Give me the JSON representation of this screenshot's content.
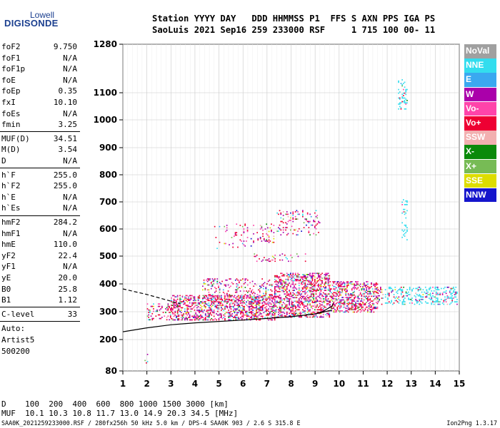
{
  "logo": {
    "line1": "Lowell",
    "line2": "DIGISONDE"
  },
  "header": {
    "line1": "Station YYYY DAY   DDD HHMMSS P1  FFS S AXN PPS IGA PS",
    "line2": "SaoLuis 2021 Sep16 259 233000 RSF     1 715 100 00- 11"
  },
  "params": {
    "group1": [
      {
        "k": "foF2",
        "v": "9.750"
      },
      {
        "k": "foF1",
        "v": "N/A"
      },
      {
        "k": "foF1p",
        "v": "N/A"
      },
      {
        "k": "foE",
        "v": "N/A"
      },
      {
        "k": "foEp",
        "v": "0.35"
      },
      {
        "k": "fxI",
        "v": "10.10"
      },
      {
        "k": "foEs",
        "v": "N/A"
      },
      {
        "k": "fmin",
        "v": "3.25"
      }
    ],
    "group2": [
      {
        "k": "MUF(D)",
        "v": "34.51"
      },
      {
        "k": "M(D)",
        "v": "3.54"
      },
      {
        "k": "D",
        "v": "N/A"
      }
    ],
    "group3": [
      {
        "k": "h`F",
        "v": "255.0"
      },
      {
        "k": "h`F2",
        "v": "255.0"
      },
      {
        "k": "h`E",
        "v": "N/A"
      },
      {
        "k": "h`Es",
        "v": "N/A"
      }
    ],
    "group4": [
      {
        "k": "hmF2",
        "v": "284.2"
      },
      {
        "k": "hmF1",
        "v": "N/A"
      },
      {
        "k": "hmE",
        "v": "110.0"
      },
      {
        "k": "yF2",
        "v": "22.4"
      },
      {
        "k": "yF1",
        "v": "N/A"
      },
      {
        "k": "yE",
        "v": "20.0"
      },
      {
        "k": "B0",
        "v": "25.8"
      },
      {
        "k": "B1",
        "v": "1.12"
      }
    ],
    "group5": [
      {
        "k": "C-level",
        "v": "33"
      }
    ],
    "auto": [
      "Auto:",
      "Artist5",
      "500200"
    ]
  },
  "legend": [
    {
      "label": "NoVal",
      "bg": "#a0a0a0",
      "fg": "#ffffff"
    },
    {
      "label": "NNE",
      "bg": "#33ddee",
      "fg": "#ffffff"
    },
    {
      "label": "E",
      "bg": "#3aa8f0",
      "fg": "#ffffff"
    },
    {
      "label": "W",
      "bg": "#aa00aa",
      "fg": "#ffffff"
    },
    {
      "label": "Vo-",
      "bg": "#ff44aa",
      "fg": "#ffffff"
    },
    {
      "label": "Vo+",
      "bg": "#ee0033",
      "fg": "#ffffff"
    },
    {
      "label": "SSW",
      "bg": "#f2b0b0",
      "fg": "#ffffff"
    },
    {
      "label": "X-",
      "bg": "#0a8a0a",
      "fg": "#ffffff"
    },
    {
      "label": "X+",
      "bg": "#77bb55",
      "fg": "#ffffff"
    },
    {
      "label": "SSE",
      "bg": "#dddd00",
      "fg": "#ffffff"
    },
    {
      "label": "NNW",
      "bg": "#1515cc",
      "fg": "#ffffff"
    }
  ],
  "footer": {
    "line1": "D    100  200  400  600  800 1000 1500 3000 [km]",
    "line2": "MUF  10.1 10.3 10.8 11.7 13.0 14.9 20.3 34.5 [MHz]",
    "line3": "SAA0K_2021259233000.RSF / 280fx256h 50 kHz 5.0 km / DPS-4 SAA0K 903 / 2.6 S 315.8 E",
    "version": "Ion2Png 1.3.17"
  },
  "chart_data": {
    "type": "scatter",
    "x_ticks": [
      1,
      2,
      3,
      4,
      5,
      6,
      7,
      8,
      9,
      10,
      11,
      12,
      13,
      14,
      15
    ],
    "y_ticks": [
      80,
      200,
      300,
      400,
      500,
      600,
      700,
      800,
      900,
      1000,
      1100,
      1280
    ],
    "xlim": [
      1,
      15
    ],
    "ylim": [
      80,
      1280
    ],
    "grid": true,
    "legend_position": "right",
    "traces": [
      {
        "kind": "profile-solid",
        "x": [
          1.0,
          2.0,
          3.0,
          4.0,
          5.0,
          6.0,
          7.0,
          8.0,
          9.0,
          9.7
        ],
        "y": [
          228,
          242,
          253,
          260,
          265,
          270,
          276,
          282,
          292,
          306
        ]
      },
      {
        "kind": "profile-dashed",
        "x": [
          1.0,
          1.5,
          2.0,
          2.5,
          3.0,
          3.4
        ],
        "y": [
          382,
          372,
          362,
          350,
          338,
          328
        ]
      },
      {
        "kind": "profile-solid",
        "x": [
          9.0,
          9.3,
          9.5,
          9.7,
          9.75
        ],
        "y": [
          292,
          300,
          310,
          320,
          330
        ]
      }
    ],
    "echo_regions": [
      {
        "x0": 2.0,
        "x1": 3.0,
        "y0": 270,
        "y1": 330,
        "density": 0.35
      },
      {
        "x0": 3.0,
        "x1": 7.3,
        "y0": 270,
        "y1": 360,
        "density": 0.8
      },
      {
        "x0": 4.3,
        "x1": 7.2,
        "y0": 330,
        "y1": 420,
        "density": 0.35
      },
      {
        "x0": 7.3,
        "x1": 9.6,
        "y0": 280,
        "y1": 440,
        "density": 0.85
      },
      {
        "x0": 9.6,
        "x1": 11.6,
        "y0": 300,
        "y1": 410,
        "density": 0.8
      },
      {
        "x0": 11.6,
        "x1": 14.9,
        "y0": 325,
        "y1": 390,
        "density": 0.55
      },
      {
        "x0": 4.8,
        "x1": 6.6,
        "y0": 530,
        "y1": 620,
        "density": 0.12
      },
      {
        "x0": 6.6,
        "x1": 7.3,
        "y0": 550,
        "y1": 620,
        "density": 0.3
      },
      {
        "x0": 7.4,
        "x1": 9.2,
        "y0": 580,
        "y1": 670,
        "density": 0.25
      },
      {
        "x0": 6.4,
        "x1": 8.6,
        "y0": 480,
        "y1": 510,
        "density": 0.2
      },
      {
        "x0": 12.45,
        "x1": 12.85,
        "y0": 1040,
        "y1": 1150,
        "density": 0.4
      },
      {
        "x0": 12.6,
        "x1": 12.85,
        "y0": 550,
        "y1": 710,
        "density": 0.4
      },
      {
        "x0": 1.9,
        "x1": 2.1,
        "y0": 110,
        "y1": 150,
        "density": 0.3
      }
    ]
  }
}
